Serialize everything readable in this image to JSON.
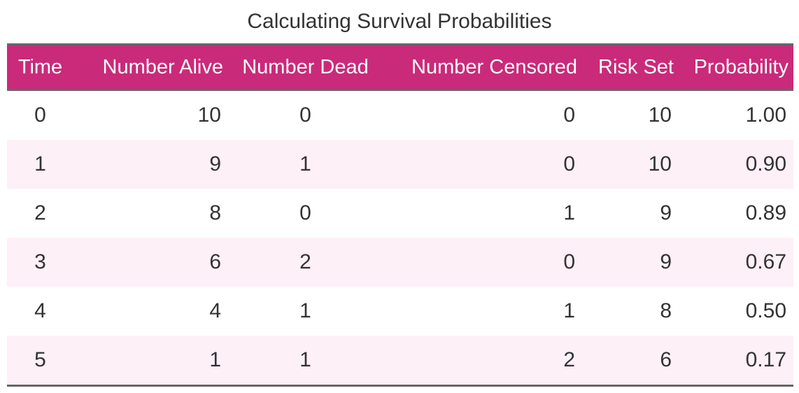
{
  "table": {
    "caption": "Calculating Survival Probabilities",
    "colors": {
      "header_bg": "#ca2a7a",
      "header_text": "#ffffff",
      "stripe_bg": "#fdf0f6",
      "rule": "#666666"
    },
    "headers": [
      "Time",
      "Number Alive",
      "Number Dead",
      "Number Censored",
      "Risk Set",
      "Probability"
    ],
    "rows": [
      [
        "0",
        "10",
        "0",
        "0",
        "10",
        "1.00"
      ],
      [
        "1",
        "9",
        "1",
        "0",
        "10",
        "0.90"
      ],
      [
        "2",
        "8",
        "0",
        "1",
        "9",
        "0.89"
      ],
      [
        "3",
        "6",
        "2",
        "0",
        "9",
        "0.67"
      ],
      [
        "4",
        "4",
        "1",
        "1",
        "8",
        "0.50"
      ],
      [
        "5",
        "1",
        "1",
        "2",
        "6",
        "0.17"
      ]
    ]
  }
}
